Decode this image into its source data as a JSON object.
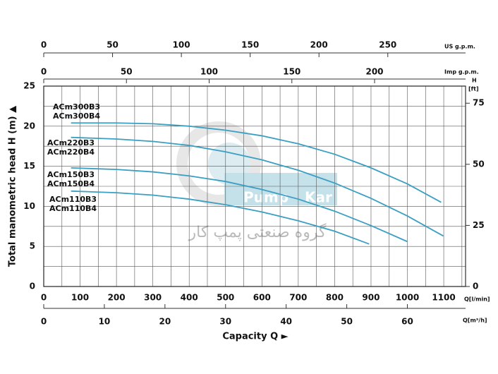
{
  "chart_data": {
    "type": "line",
    "ylabel": "Total manometric head H (m)  ▲",
    "xlabel": "Capacity Q  ►",
    "xunit": "Q[l/min]",
    "xlim": [
      0,
      1160
    ],
    "xticks": [
      0,
      100,
      200,
      300,
      400,
      500,
      600,
      700,
      800,
      900,
      1000,
      1100
    ],
    "xminorticks": [
      50,
      150,
      250,
      350,
      450,
      550,
      650,
      750,
      850,
      950,
      1050,
      1150
    ],
    "ylim": [
      0,
      25
    ],
    "yticks": [
      0,
      5,
      10,
      15,
      20,
      25
    ],
    "yminorticks": [
      2.5,
      7.5,
      12.5,
      17.5,
      22.5
    ],
    "y2unit": [
      "H",
      "[ft]"
    ],
    "y2lim": [
      0,
      82
    ],
    "y2ticks": [
      0,
      25,
      50,
      75
    ],
    "top_axes": [
      {
        "unit": "US g.p.m.",
        "lim": [
          0,
          306.5
        ],
        "ticks": [
          0,
          50,
          100,
          150,
          200,
          250
        ]
      },
      {
        "unit": "Imp g.p.m.",
        "lim": [
          0,
          255
        ],
        "ticks": [
          0,
          50,
          100,
          150,
          200
        ]
      }
    ],
    "bottom_axis2": {
      "unit": "Q[m³/h]",
      "lim": [
        0,
        69.6
      ],
      "ticks": [
        0,
        10,
        20,
        30,
        40,
        50,
        60
      ]
    },
    "grid": true,
    "watermark": [
      "Pump",
      "Kar",
      "گروه صنعتی پمپ کار"
    ],
    "series": [
      {
        "names": [
          "ACm300B3",
          "ACm300B4"
        ],
        "color": "#3a9fc2",
        "x": [
          75,
          200,
          300,
          400,
          500,
          600,
          700,
          800,
          900,
          1000,
          1093
        ],
        "values": [
          20.4,
          20.4,
          20.3,
          20.0,
          19.5,
          18.8,
          17.8,
          16.5,
          14.8,
          12.8,
          10.5
        ]
      },
      {
        "names": [
          "ACm220B3",
          "ACm220B4"
        ],
        "color": "#3a9fc2",
        "x": [
          75,
          200,
          300,
          400,
          500,
          600,
          700,
          800,
          900,
          1000,
          1099
        ],
        "values": [
          18.6,
          18.4,
          18.1,
          17.6,
          16.8,
          15.8,
          14.5,
          12.9,
          11.0,
          8.8,
          6.3
        ]
      },
      {
        "names": [
          "ACm150B3",
          "ACm150B4"
        ],
        "color": "#3a9fc2",
        "x": [
          75,
          200,
          300,
          400,
          500,
          600,
          700,
          800,
          900,
          1000
        ],
        "values": [
          14.8,
          14.6,
          14.3,
          13.8,
          13.1,
          12.1,
          10.9,
          9.4,
          7.6,
          5.6
        ]
      },
      {
        "names": [
          "ACm110B3",
          "ACm110B4"
        ],
        "color": "#3a9fc2",
        "x": [
          75,
          200,
          300,
          400,
          500,
          600,
          700,
          800,
          895
        ],
        "values": [
          11.9,
          11.7,
          11.4,
          10.9,
          10.2,
          9.3,
          8.2,
          6.9,
          5.3
        ]
      }
    ]
  }
}
